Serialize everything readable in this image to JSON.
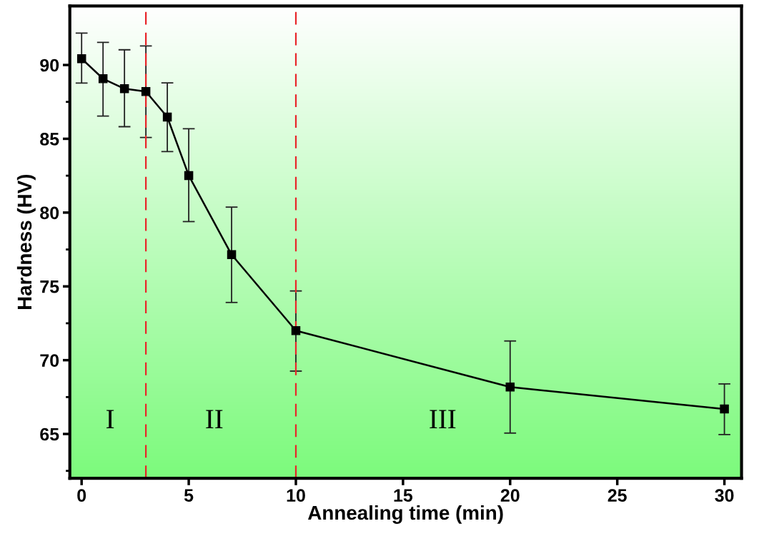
{
  "chart_data": {
    "type": "line",
    "xlabel": "Annealing time (min)",
    "ylabel": "Hardness (HV)",
    "x": [
      0,
      1,
      2,
      3,
      4,
      5,
      7,
      10,
      20,
      30
    ],
    "series": [
      {
        "color": "#000000",
        "values": [
          90.43,
          89.07,
          88.39,
          88.2,
          86.47,
          82.51,
          77.15,
          72.0,
          68.18,
          66.69
        ],
        "errors": [
          [
            88.78,
            92.16
          ],
          [
            86.54,
            91.53
          ],
          [
            85.82,
            91.03
          ],
          [
            85.09,
            91.29
          ],
          [
            84.13,
            88.79
          ],
          [
            79.39,
            85.68
          ],
          [
            73.91,
            80.37
          ],
          [
            69.26,
            74.69
          ],
          [
            65.06,
            71.3
          ],
          [
            64.96,
            68.39
          ]
        ]
      }
    ],
    "marker": "square",
    "line_style": "solid",
    "xlim": [
      -0.55,
      30.8
    ],
    "xticks": [
      0,
      5,
      10,
      15,
      20,
      25,
      30
    ],
    "ylim": [
      62.0,
      94.0
    ],
    "yticks": [
      65,
      70,
      75,
      80,
      85,
      90
    ],
    "ref_lines": [
      {
        "axis": "x",
        "value": 3,
        "color": "#e8262a",
        "line_style": "dashed"
      },
      {
        "axis": "x",
        "value": 10,
        "color": "#e8262a",
        "line_style": "dashed"
      }
    ],
    "annotations": [
      "I",
      "II",
      "III"
    ],
    "grid": false,
    "legend": false
  }
}
